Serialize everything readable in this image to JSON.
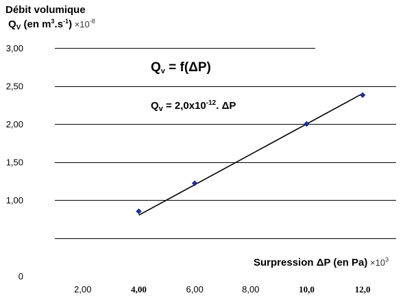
{
  "chart_data": {
    "type": "scatter",
    "ylabel_line1": "Débit volumique",
    "ylabel_symbol": "Q",
    "ylabel_symbol_sub": "V",
    "ylabel_unit_pre": " (en m",
    "ylabel_unit_sup": "3",
    "ylabel_unit_mid": ".s",
    "ylabel_unit_sup2": "-1",
    "ylabel_unit_post": ")",
    "ylabel_mult": " ×10",
    "ylabel_mult_exp": "-8",
    "xlabel_text": "Surpression ΔP (en Pa)",
    "xlabel_mult": " ×10",
    "xlabel_mult_exp": "3",
    "annotation_title_symbol": "Q",
    "annotation_title_sub": "v",
    "annotation_title_rest": " = f(ΔP)",
    "annotation_eq_symbol": "Q",
    "annotation_eq_sub": "v",
    "annotation_eq_pre": " = 2,0x10",
    "annotation_eq_sup": "-12",
    "annotation_eq_post": ". ΔP",
    "xlim": [
      1.0,
      13.0
    ],
    "ylim": [
      0,
      3.0
    ],
    "y_gridlines": [
      0.5,
      1.0,
      1.5,
      2.0,
      2.5,
      3.0
    ],
    "y_ticks": [
      {
        "value": 3.0,
        "label": "3,00"
      },
      {
        "value": 2.5,
        "label": "2,50"
      },
      {
        "value": 2.0,
        "label": "2,00"
      },
      {
        "value": 1.5,
        "label": "1,50"
      },
      {
        "value": 1.0,
        "label": "1,00"
      },
      {
        "value": 0.0,
        "label": "0"
      }
    ],
    "x_ticks": [
      {
        "value": 2.0,
        "label": "2,00",
        "style": "sans"
      },
      {
        "value": 4.0,
        "label": "4,00",
        "style": "serif"
      },
      {
        "value": 6.0,
        "label": "6,00",
        "style": "sans"
      },
      {
        "value": 8.0,
        "label": "8,00",
        "style": "sans"
      },
      {
        "value": 10.0,
        "label": "10,0",
        "style": "serif"
      },
      {
        "value": 12.0,
        "label": "12,0",
        "style": "serif"
      }
    ],
    "points": [
      {
        "x": 4.0,
        "y": 0.85
      },
      {
        "x": 6.0,
        "y": 1.22
      },
      {
        "x": 10.0,
        "y": 2.0
      },
      {
        "x": 12.0,
        "y": 2.38
      }
    ],
    "fit_line": {
      "x": [
        4.0,
        12.0
      ],
      "y": [
        0.8,
        2.4
      ]
    },
    "marker_color": "#1f2f8f",
    "line_color": "#000000",
    "grid": true,
    "legend": "none"
  }
}
